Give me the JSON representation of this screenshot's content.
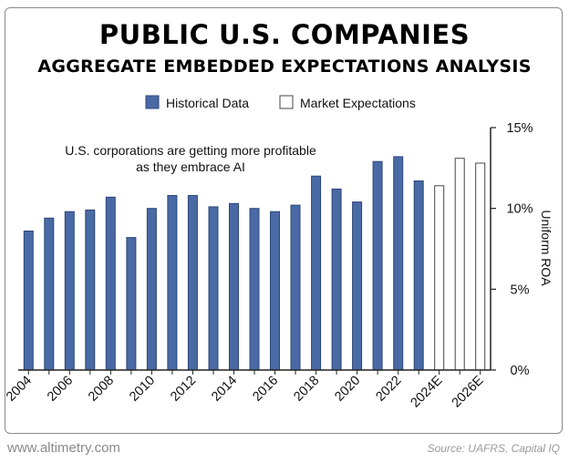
{
  "footer": {
    "website": "www.altimetry.com",
    "source": "Source: UAFRS, Capital IQ"
  },
  "colors": {
    "historical": "#4a6aa6",
    "historical_stroke": "#2c4778",
    "expectations": "#ffffff",
    "expectations_stroke": "#444444"
  },
  "chart_data": {
    "type": "bar",
    "title": "PUBLIC U.S. COMPANIES",
    "subtitle": "AGGREGATE EMBEDDED EXPECTATIONS ANALYSIS",
    "ylabel": "Uniform ROA",
    "xlabel": "",
    "ylim": [
      0,
      15
    ],
    "yticks": [
      0,
      5,
      10,
      15
    ],
    "ytick_labels": [
      "0%",
      "5%",
      "10%",
      "15%"
    ],
    "ytick_side": "right",
    "grid": false,
    "legend_position": "top",
    "legend": [
      "Historical Data",
      "Market Expectations"
    ],
    "annotation": [
      "U.S. corporations are getting more profitable",
      "as they embrace AI"
    ],
    "categories": [
      "2004",
      "2005",
      "2006",
      "2007",
      "2008",
      "2009",
      "2010",
      "2011",
      "2012",
      "2013",
      "2014",
      "2015",
      "2016",
      "2017",
      "2018",
      "2019",
      "2020",
      "2021",
      "2022",
      "2023",
      "2024E",
      "2025E",
      "2026E"
    ],
    "xtick_labels": [
      "2004",
      "",
      "2006",
      "",
      "2008",
      "",
      "2010",
      "",
      "2012",
      "",
      "2014",
      "",
      "2016",
      "",
      "2018",
      "",
      "2020",
      "",
      "2022",
      "",
      "2024E",
      "",
      "2026E"
    ],
    "series": [
      {
        "name": "Historical Data",
        "values": [
          8.6,
          9.4,
          9.8,
          9.9,
          10.7,
          8.2,
          10.0,
          10.8,
          10.8,
          10.1,
          10.3,
          10.0,
          9.8,
          10.2,
          12.0,
          11.2,
          10.4,
          12.9,
          13.2,
          11.7,
          null,
          null,
          null
        ]
      },
      {
        "name": "Market Expectations",
        "values": [
          null,
          null,
          null,
          null,
          null,
          null,
          null,
          null,
          null,
          null,
          null,
          null,
          null,
          null,
          null,
          null,
          null,
          null,
          null,
          null,
          11.4,
          13.1,
          12.8
        ]
      }
    ]
  }
}
